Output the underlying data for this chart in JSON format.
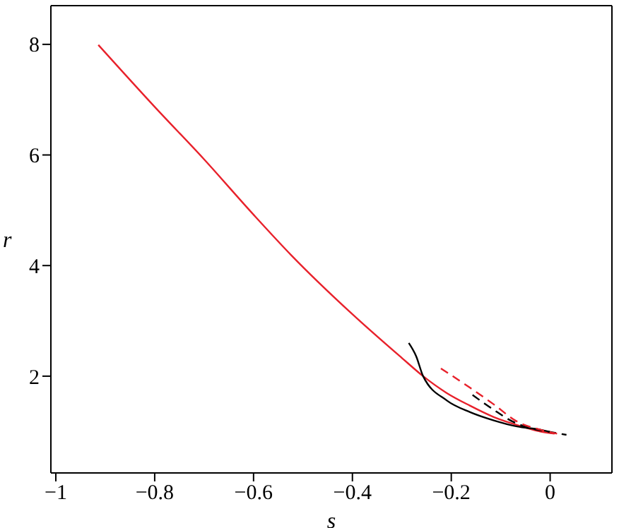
{
  "chart_data": {
    "type": "line",
    "xlabel": "s",
    "ylabel": "r",
    "xlim": [
      -1.01,
      0.125
    ],
    "ylim": [
      0.25,
      8.7
    ],
    "xticks": [
      -1,
      -0.8,
      -0.6,
      -0.4,
      -0.2,
      0
    ],
    "yticks": [
      2,
      4,
      6,
      8
    ],
    "series": [
      {
        "color": "#e8212b",
        "line_style": "solid",
        "x": [
          -0.914,
          -0.8,
          -0.7,
          -0.6,
          -0.524,
          -0.4,
          -0.3,
          -0.257,
          -0.21,
          -0.163,
          -0.114,
          -0.057,
          -0.02,
          0.009
        ],
        "values": [
          7.99,
          6.87,
          5.92,
          4.92,
          4.19,
          3.12,
          2.33,
          2.0,
          1.7,
          1.47,
          1.26,
          1.09,
          1.0,
          0.96
        ]
      },
      {
        "color": "#000000",
        "line_style": "solid",
        "x": [
          -0.286,
          -0.271,
          -0.257,
          -0.209,
          -0.162,
          -0.114,
          -0.067,
          -0.019,
          0.0
        ],
        "values": [
          2.6,
          2.36,
          2.0,
          1.56,
          1.35,
          1.2,
          1.09,
          1.03,
          0.99
        ]
      },
      {
        "color": "#000000",
        "line_style": "dashed",
        "x": [
          -0.157,
          -0.114,
          -0.076,
          -0.04,
          0.0,
          0.033
        ],
        "values": [
          1.66,
          1.39,
          1.18,
          1.06,
          0.99,
          0.94
        ]
      },
      {
        "color": "#e8212b",
        "line_style": "dashed",
        "x": [
          -0.221,
          -0.162,
          -0.114,
          -0.067,
          -0.019,
          0.014
        ],
        "values": [
          2.14,
          1.79,
          1.49,
          1.18,
          1.03,
          0.96
        ]
      }
    ]
  }
}
